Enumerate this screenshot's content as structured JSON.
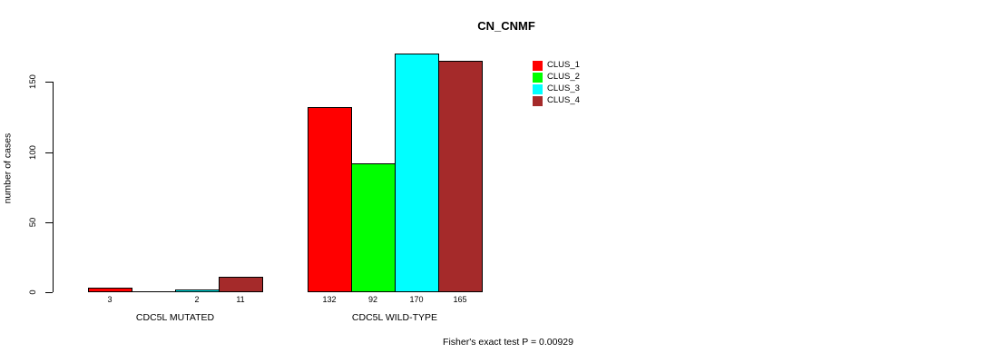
{
  "title": "CN_CNMF",
  "y_axis": {
    "label": "number of cases",
    "ticks": [
      0,
      50,
      100,
      150
    ]
  },
  "footer": "Fisher's exact test P = 0.00929",
  "legend": {
    "items": [
      {
        "label": "CLUS_1",
        "color": "#FF0000"
      },
      {
        "label": "CLUS_2",
        "color": "#00FF00"
      },
      {
        "label": "CLUS_3",
        "color": "#00FFFF"
      },
      {
        "label": "CLUS_4",
        "color": "#A52A2A"
      }
    ]
  },
  "chart_data": {
    "type": "bar",
    "title": "CN_CNMF",
    "ylabel": "number of cases",
    "yticks": [
      0,
      50,
      100,
      150
    ],
    "ylim": [
      0,
      170
    ],
    "grid": false,
    "legend_position": "top-right",
    "series": [
      "CLUS_1",
      "CLUS_2",
      "CLUS_3",
      "CLUS_4"
    ],
    "colors": [
      "#FF0000",
      "#00FF00",
      "#00FFFF",
      "#A52A2A"
    ],
    "groups": [
      {
        "label": "CDC5L MUTATED",
        "values": [
          3,
          0,
          2,
          11
        ],
        "bar_labels": [
          "3",
          "",
          "2",
          "11"
        ]
      },
      {
        "label": "CDC5L WILD-TYPE",
        "values": [
          132,
          92,
          170,
          165
        ],
        "bar_labels": [
          "132",
          "92",
          "170",
          "165"
        ]
      }
    ],
    "annotation": "Fisher's exact test P = 0.00929"
  }
}
